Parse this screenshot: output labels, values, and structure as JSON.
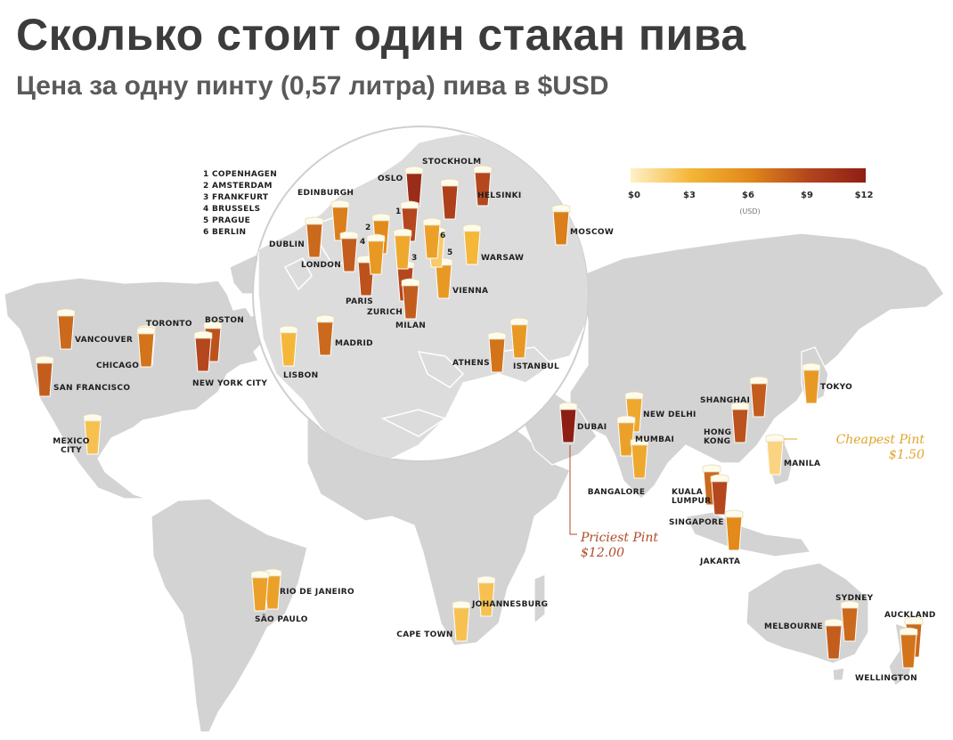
{
  "title": "Сколько стоит один стакан пива",
  "subtitle": "Цена за одну пинту (0,57 литра) пива в $USD",
  "legend": {
    "ticks": [
      "$0",
      "$3",
      "$6",
      "$9",
      "$12"
    ],
    "unit": "(USD)",
    "colors": [
      "#fff1c8",
      "#f4b738",
      "#e28a1a",
      "#b4471e",
      "#8e1e14"
    ]
  },
  "key_list": [
    "1 COPENHAGEN",
    "2 AMSTERDAM",
    "3 FRANKFURT",
    "4 BRUSSELS",
    "5 PRAGUE",
    "6 BERLIN"
  ],
  "notes": {
    "cheapest_title": "Cheapest Pint",
    "cheapest_value": "$1.50",
    "priciest_title": "Priciest Pint",
    "priciest_value": "$12.00"
  },
  "colors": {
    "land": "#d3d3d3",
    "border": "#ffffff",
    "zoom": "#dcdcdc",
    "cheap_note": "#e0a42a",
    "pricey_note": "#b04a2a"
  },
  "cities": [
    {
      "name": "VANCOUVER",
      "price": 7.5
    },
    {
      "name": "SAN FRANCISCO",
      "price": 8.0
    },
    {
      "name": "TORONTO",
      "price": 7.0
    },
    {
      "name": "CHICAGO",
      "price": 7.0
    },
    {
      "name": "BOSTON",
      "price": 8.5
    },
    {
      "name": "NEW YORK CITY",
      "price": 9.0
    },
    {
      "name": "MEXICO CITY",
      "price": 2.5
    },
    {
      "name": "RIO DE JANEIRO",
      "price": 4.5
    },
    {
      "name": "SÃO PAULO",
      "price": 4.5
    },
    {
      "name": "CAPE TOWN",
      "price": 2.5
    },
    {
      "name": "JOHANNESBURG",
      "price": 2.5
    },
    {
      "name": "OSLO",
      "price": 11.0
    },
    {
      "name": "STOCKHOLM",
      "price": 9.5
    },
    {
      "name": "HELSINKI",
      "price": 9.0
    },
    {
      "name": "MOSCOW",
      "price": 6.5
    },
    {
      "name": "EDINBURGH",
      "price": 6.5
    },
    {
      "name": "DUBLIN",
      "price": 7.5
    },
    {
      "name": "LONDON",
      "price": 8.0
    },
    {
      "name": "PARIS",
      "price": 8.5
    },
    {
      "name": "ZURICH",
      "price": 9.0
    },
    {
      "name": "MILAN",
      "price": 8.0
    },
    {
      "name": "VIENNA",
      "price": 5.0
    },
    {
      "name": "WARSAW",
      "price": 3.0
    },
    {
      "name": "MADRID",
      "price": 7.5
    },
    {
      "name": "LISBON",
      "price": 3.0
    },
    {
      "name": "ATHENS",
      "price": 7.0
    },
    {
      "name": "ISTANBUL",
      "price": 5.0
    },
    {
      "name": "COPENHAGEN",
      "price": 9.0
    },
    {
      "name": "AMSTERDAM",
      "price": 6.0
    },
    {
      "name": "FRANKFURT",
      "price": 4.0
    },
    {
      "name": "BRUSSELS",
      "price": 5.0
    },
    {
      "name": "PRAGUE",
      "price": 2.0
    },
    {
      "name": "BERLIN",
      "price": 4.5
    },
    {
      "name": "DUBAI",
      "price": 12.0
    },
    {
      "name": "NEW DELHI",
      "price": 4.0
    },
    {
      "name": "MUMBAI",
      "price": 4.5
    },
    {
      "name": "BANGALORE",
      "price": 4.0
    },
    {
      "name": "SHANGHAI",
      "price": 8.0
    },
    {
      "name": "HONG KONG",
      "price": 8.5
    },
    {
      "name": "TOKYO",
      "price": 5.0
    },
    {
      "name": "MANILA",
      "price": 1.5
    },
    {
      "name": "KUALA LUMPUR",
      "price": 7.5
    },
    {
      "name": "SINGAPORE",
      "price": 9.0
    },
    {
      "name": "JAKARTA",
      "price": 6.0
    },
    {
      "name": "SYDNEY",
      "price": 7.5
    },
    {
      "name": "MELBOURNE",
      "price": 8.0
    },
    {
      "name": "AUCKLAND",
      "price": 7.5
    },
    {
      "name": "WELLINGTON",
      "price": 7.0
    }
  ]
}
